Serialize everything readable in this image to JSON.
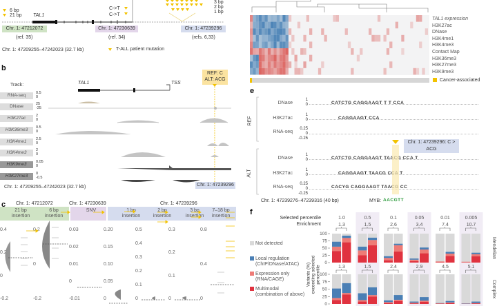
{
  "panel_a": {
    "mutation_sizes_left": [
      "6 bp",
      "21 bp"
    ],
    "gene": "TAL1",
    "snv_labels": [
      "C->T",
      "C->T"
    ],
    "mutation_sizes_right": [
      "3 bp",
      "2 bp",
      "1 bp"
    ],
    "loci": [
      {
        "label": "Chr. 1: 47212072",
        "ref": "(ref. 35)",
        "color": "#cfe3c4"
      },
      {
        "label": "Chr. 1: 47230639",
        "ref": "(ref. 34)",
        "color": "#e3d6ea"
      },
      {
        "label": "Chr. 1: 47239296",
        "ref": "(refs. 6,33)",
        "color": "#d5dcee"
      }
    ],
    "region": "Chr. 1: 47209255–47242023 (32.7 kb)",
    "legend": "T-ALL patient mutation",
    "mutation_color": "#f2c200"
  },
  "panel_b": {
    "label": "b",
    "track_header": "Track:",
    "gene": "TAL1",
    "tss": "TSS",
    "variant": [
      "REF: C",
      "ALT: ACG"
    ],
    "tracks": [
      {
        "name": "RNA-seq",
        "ticks": [
          "0.5",
          "0"
        ]
      },
      {
        "name": "DNase",
        "ticks": [
          "25",
          "-25"
        ]
      },
      {
        "name": "H3K27ac",
        "ticks": [
          "2",
          "0"
        ]
      },
      {
        "name": "H3K36me3",
        "ticks": [
          "0.5",
          "0"
        ]
      },
      {
        "name": "H3K4me1",
        "ticks": [
          "2.5",
          "0"
        ]
      },
      {
        "name": "H3K4me3",
        "ticks": [
          "2",
          "0"
        ]
      },
      {
        "name": "H3K9me3",
        "ticks": [
          "0.05",
          "0"
        ]
      },
      {
        "name": "H3K27me3",
        "ticks": [
          "0",
          "-0.5"
        ]
      }
    ],
    "region": "Chr. 1: 47209255–47242023 (32.7 kb)",
    "locus": "Chr. 1: 47239296"
  },
  "panel_c": {
    "label": "c",
    "loci": [
      "Chr. 1: 47212072",
      "Chr. 1: 47230639",
      "Chr. 1: 47239296"
    ],
    "groups": [
      {
        "label": [
          "21 bp",
          "insertion"
        ],
        "ticks": [
          "0.4",
          "0.2",
          "0",
          "-0.2"
        ]
      },
      {
        "label": [
          "6 bp",
          "insertion"
        ],
        "ticks": [
          "0.2",
          "0",
          "-0.2"
        ]
      },
      {
        "label": [
          "SNV"
        ],
        "ticks": [
          "0.03",
          "0.02",
          "0.01",
          "0",
          "-0.01"
        ]
      },
      {
        "label": [],
        "ticks": [
          "0.20",
          "0.15",
          "0.10",
          "0.05",
          "0"
        ]
      },
      {
        "label": [
          "1 bp",
          "insertion"
        ],
        "ticks": [
          "0.5",
          "0.4",
          "0.3",
          "0.2",
          "0.1",
          "0"
        ]
      },
      {
        "label": [
          "2 bp",
          "insertion"
        ],
        "ticks": [
          "0.3",
          "0.2",
          "0.1",
          "0"
        ]
      },
      {
        "label": [
          "3 bp",
          "insertion"
        ],
        "ticks": [
          "0.8",
          "0.4",
          "0"
        ]
      },
      {
        "label": [
          "7–18 bp",
          "insertion"
        ],
        "ticks": []
      }
    ]
  },
  "panel_d": {
    "rows": [
      "TAL1 expression",
      "H3K27ac",
      "DNase",
      "H3K4me1",
      "H3K4me3",
      "Contact Map",
      "H3K36me3",
      "H3K27me3",
      "H3K9me3"
    ],
    "legend": "Cancer-associated",
    "colors": {
      "pos": "#d9534f",
      "neg": "#3b78b0",
      "cancer": "#f2c200"
    }
  },
  "panel_e": {
    "label": "e",
    "groups": [
      {
        "name": "REF",
        "tracks": [
          {
            "name": "DNase",
            "ticks": [
              "1",
              "0"
            ],
            "seq": "CATCTG CAGGAAGT    T    T  CCA"
          },
          {
            "name": "H3K27ac",
            "ticks": [
              "1",
              "0"
            ],
            "seq": "CAGGAAGT      CCA"
          },
          {
            "name": "RNA-seq",
            "ticks": [
              "0.25",
              "0",
              "-0.25"
            ],
            "seq": ""
          }
        ]
      },
      {
        "name": "ALT",
        "tracks": [
          {
            "name": "DNase",
            "ticks": [
              "1",
              "0"
            ],
            "seq": "CATCTG CAGGAAGT   TAACG     CCA   T"
          },
          {
            "name": "H3K27ac",
            "ticks": [
              "1",
              "0"
            ],
            "seq": "CAGGAAGT   TAACG     CCA   T"
          },
          {
            "name": "RNA-seq",
            "ticks": [
              "0.25",
              "0",
              "-0.25"
            ],
            "seq": "CACYG CAGGAAGT   TAACG     CC"
          }
        ]
      }
    ],
    "variant": "Chr. 1: 47239296: C > ACG",
    "region": "Chr. 1: 47239276–47239316 (40 bp)",
    "motif_label": "MYB:",
    "motif": "AACGTT"
  },
  "panel_f": {
    "label": "f",
    "row_headers": [
      "Selected percentile",
      "Enrichment"
    ],
    "ylabel": "Variants (%) exceeding selected percentile",
    "legend": [
      {
        "label": "Not detected",
        "color": "#d9d9d9"
      },
      {
        "label": "Local regulation",
        "sub": "(ChIP/DNase/ATAC)",
        "color": "#4a7fb5"
      },
      {
        "label": "Expression only",
        "sub": "(RNA/CAGE)",
        "color": "#ee7b76"
      },
      {
        "label": "Multimodal",
        "sub": "(combination of above)",
        "color": "#e0323f"
      }
    ]
  },
  "chart_data": {
    "type": "bar",
    "stacked": true,
    "ylim": [
      0,
      100
    ],
    "yticks": [
      "0",
      "25",
      "50",
      "75",
      "100"
    ],
    "percentiles": [
      "1.0",
      "0.5",
      "0.1",
      "0.05",
      "0.01",
      "0.005"
    ],
    "panels": [
      {
        "name": "Mendelian",
        "enrichment": [
          "1.3",
          "1.5",
          "2.6",
          "3.4",
          "7.4",
          "10.7"
        ],
        "bars": [
          [
            [
              40,
              15,
              17
            ],
            [
              70,
              15,
              8
            ]
          ],
          [
            [
              25,
              17,
              13
            ],
            [
              60,
              18,
              8
            ]
          ],
          [
            [
              8,
              8,
              6
            ],
            [
              38,
              22,
              5
            ]
          ],
          [
            [
              5,
              5,
              4
            ],
            [
              32,
              13,
              7
            ]
          ],
          [
            [
              2,
              2,
              0
            ],
            [
              23,
              8,
              6
            ]
          ],
          [
            [
              1,
              2,
              0
            ],
            [
              22,
              7,
              5
            ]
          ]
        ]
      },
      {
        "name": "Complex",
        "enrichment": [
          "1.3",
          "1.5",
          "2.4",
          "2.9",
          "4.5",
          "5.1"
        ],
        "bars": [
          [
            [
              13,
              7,
              32
            ],
            [
              32,
              5,
              33
            ]
          ],
          [
            [
              8,
              5,
              23
            ],
            [
              25,
              5,
              26
            ]
          ],
          [
            [
              3,
              3,
              6
            ],
            [
              10,
              4,
              16
            ]
          ],
          [
            [
              2,
              2,
              4
            ],
            [
              7,
              4,
              12
            ]
          ],
          [
            [
              1,
              1,
              1
            ],
            [
              3,
              2,
              5
            ]
          ],
          [
            [
              0.5,
              0.5,
              1
            ],
            [
              2,
              1,
              5
            ]
          ]
        ]
      }
    ],
    "stack_order": [
      "Multimodal",
      "Expression only",
      "Local regulation"
    ]
  }
}
